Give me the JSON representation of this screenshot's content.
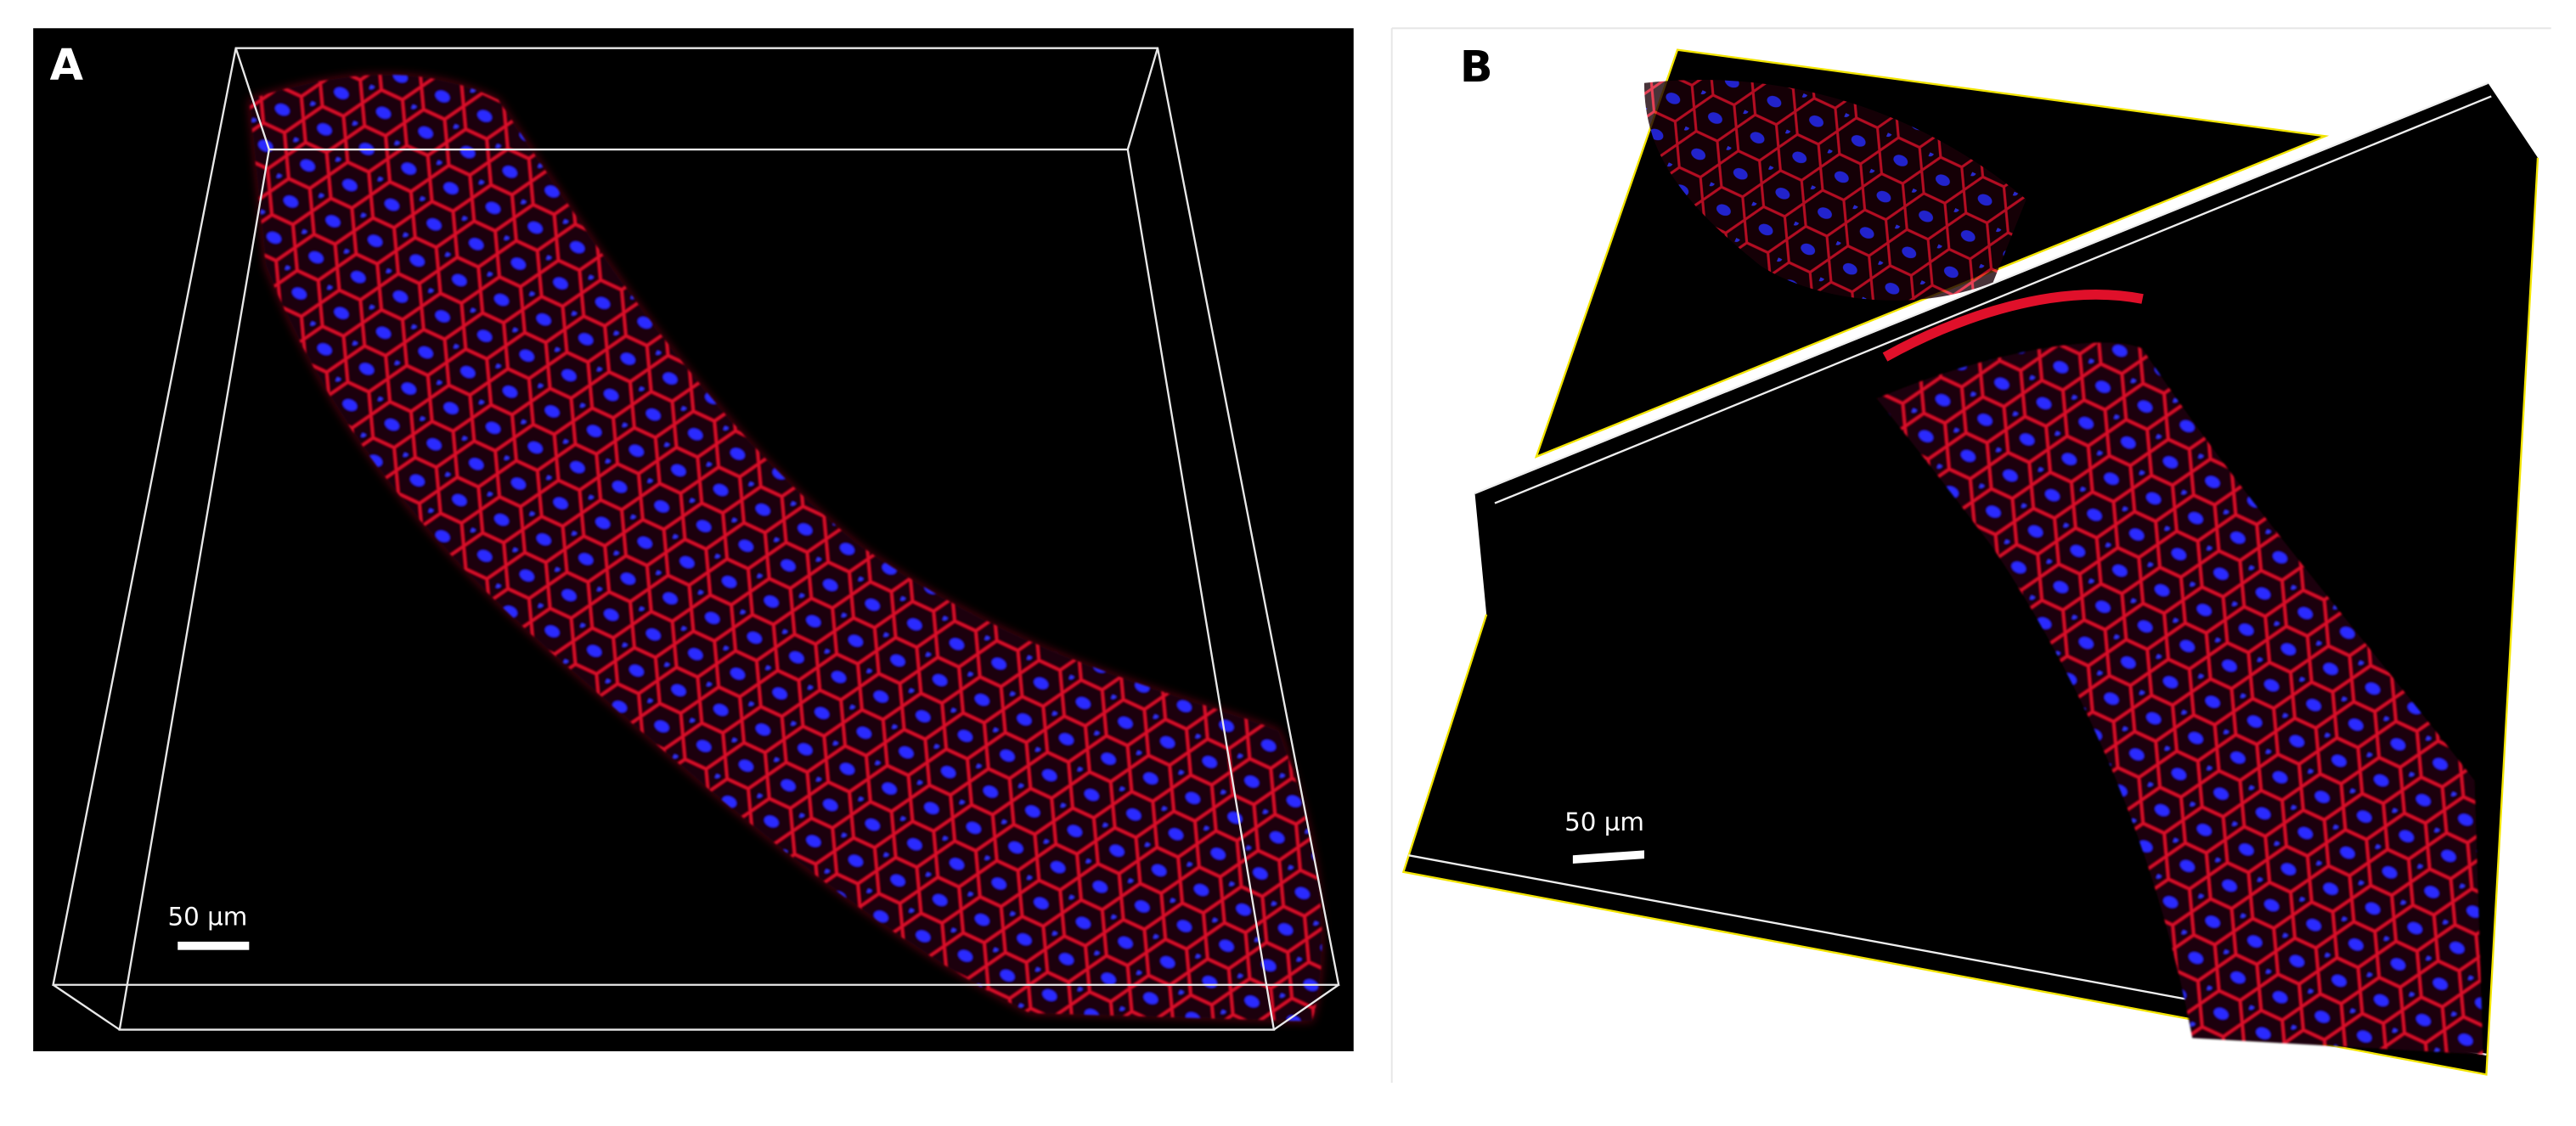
{
  "panels": [
    {
      "label": "A",
      "scale_bar": "50 µm"
    },
    {
      "label": "B",
      "scale_bar": "50 µm"
    }
  ]
}
